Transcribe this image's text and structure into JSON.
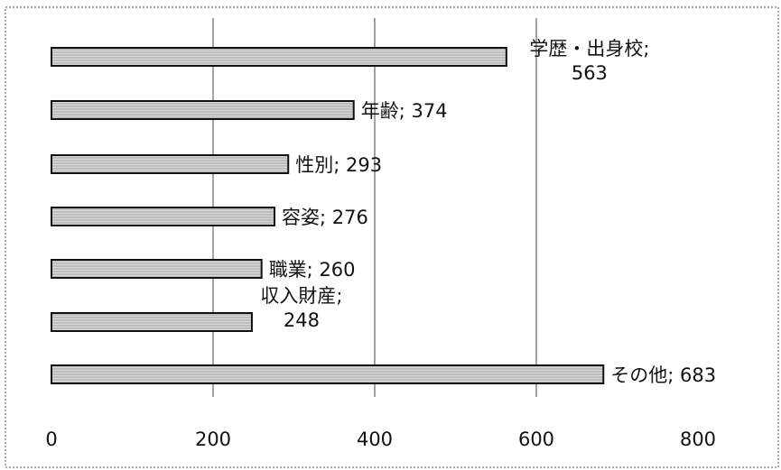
{
  "chart_data": {
    "type": "bar",
    "orientation": "horizontal",
    "categories": [
      "学歴・出身校",
      "年齢",
      "性別",
      "容姿",
      "職業",
      "収入財産",
      "その他"
    ],
    "values": [
      563,
      374,
      293,
      276,
      260,
      248,
      683
    ],
    "data_labels": [
      [
        "学歴・出身校;",
        "563"
      ],
      [
        "年齢; 374"
      ],
      [
        "性別; 293"
      ],
      [
        "容姿; 276"
      ],
      [
        "職業; 260"
      ],
      [
        "収入財産;",
        "248"
      ],
      [
        "その他; 683"
      ]
    ],
    "x_ticks": [
      "0",
      "200",
      "400",
      "600",
      "800"
    ],
    "xlim": [
      0,
      800
    ],
    "title": "",
    "xlabel": "",
    "ylabel": "",
    "grid": "vertical",
    "legend": "none",
    "bar_fill": "#d6d6d6",
    "bar_stroke": "#111111"
  }
}
